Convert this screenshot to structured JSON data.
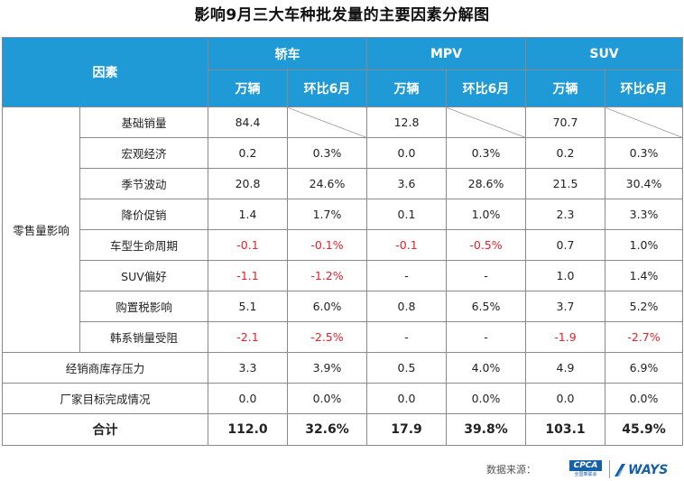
{
  "title": "影响9月三大车种批发量的主要因素分解图",
  "colors": {
    "header_bg": "#1f9ad6",
    "negative": "#e8202a",
    "brand": "#1560a8"
  },
  "chart_data": {
    "type": "table",
    "header_factor": "因素",
    "groups": [
      "轿车",
      "MPV",
      "SUV"
    ],
    "subheaders": [
      "万辆",
      "环比6月",
      "万辆",
      "环比6月",
      "万辆",
      "环比6月"
    ],
    "retail_group_label": "零售量影响",
    "rows": [
      {
        "label": "基础销量",
        "cells": [
          "84.4",
          "",
          "12.8",
          "",
          "70.7",
          ""
        ]
      },
      {
        "label": "宏观经济",
        "cells": [
          "0.2",
          "0.3%",
          "0.0",
          "0.3%",
          "0.2",
          "0.3%"
        ]
      },
      {
        "label": "季节波动",
        "cells": [
          "20.8",
          "24.6%",
          "3.6",
          "28.6%",
          "21.5",
          "30.4%"
        ]
      },
      {
        "label": "降价促销",
        "cells": [
          "1.4",
          "1.7%",
          "0.1",
          "1.0%",
          "2.3",
          "3.3%"
        ]
      },
      {
        "label": "车型生命周期",
        "cells": [
          "-0.1",
          "-0.1%",
          "-0.1",
          "-0.5%",
          "0.7",
          "1.0%"
        ]
      },
      {
        "label": "SUV偏好",
        "cells": [
          "-1.1",
          "-1.2%",
          "-",
          "-",
          "1.0",
          "1.4%"
        ]
      },
      {
        "label": "购置税影响",
        "cells": [
          "5.1",
          "6.0%",
          "0.8",
          "6.5%",
          "3.7",
          "5.2%"
        ]
      },
      {
        "label": "韩系销量受阻",
        "cells": [
          "-2.1",
          "-2.5%",
          "-",
          "-",
          "-1.9",
          "-2.7%"
        ]
      }
    ],
    "other_rows": [
      {
        "label": "经销商库存压力",
        "cells": [
          "3.3",
          "3.9%",
          "0.5",
          "4.0%",
          "4.9",
          "6.9%"
        ]
      },
      {
        "label": "厂家目标完成情况",
        "cells": [
          "0.0",
          "0.0%",
          "0.0",
          "0.0%",
          "0.0",
          "0.0%"
        ]
      }
    ],
    "total_row": {
      "label": "合计",
      "cells": [
        "112.0",
        "32.6%",
        "17.9",
        "39.8%",
        "103.1",
        "45.9%"
      ]
    }
  },
  "footer": {
    "source_label": "数据来源：",
    "cpca_logo": "CPCA",
    "cpca_sub": "全国乘联会",
    "ways_logo": "WAYS"
  }
}
